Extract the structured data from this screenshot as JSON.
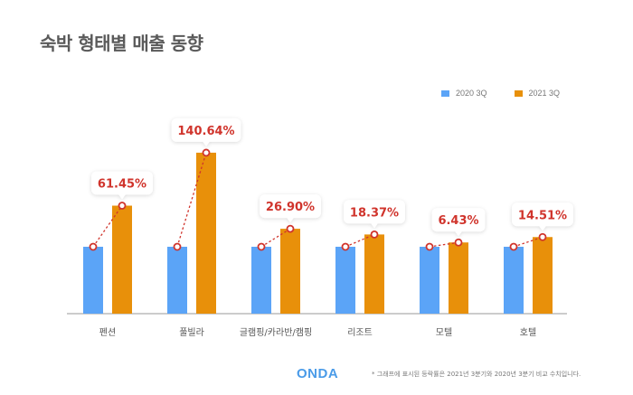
{
  "title": "숙박 형태별 매출 동향",
  "colors": {
    "series_2020": "#5ba4f7",
    "series_2021": "#e8900a",
    "growth_label": "#d0342c"
  },
  "chart_data": {
    "type": "bar",
    "title": "숙박 형태별 매출 동향",
    "categories": [
      "펜션",
      "풀빌라",
      "글램핑/카라반/캠핑",
      "리조트",
      "모텔",
      "호텔"
    ],
    "series": [
      {
        "name": "2020 3Q",
        "values": [
          100,
          100,
          100,
          100,
          100,
          100
        ]
      },
      {
        "name": "2021 3Q",
        "values": [
          161.45,
          240.64,
          126.9,
          118.37,
          106.43,
          114.51
        ]
      }
    ],
    "growth_labels": [
      "61.45%",
      "140.64%",
      "26.90%",
      "18.37%",
      "6.43%",
      "14.51%"
    ],
    "legend_position": "top-right",
    "grid": false,
    "y_axis_shown": false
  },
  "footer": {
    "logo": "ONDA",
    "note": "* 그래프에 표시된 등락률은 2021년 3분기와 2020년 3분기 비교 수치입니다."
  }
}
